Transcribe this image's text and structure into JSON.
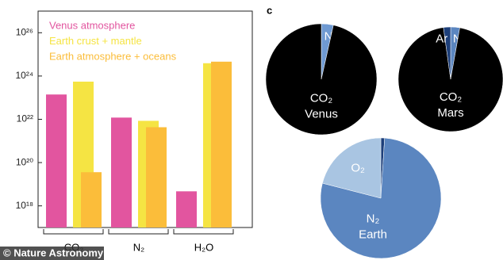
{
  "chart_data": [
    {
      "type": "bar",
      "yscale": "log",
      "categories": [
        "CO₂",
        "N₂",
        "H₂O"
      ],
      "series": [
        {
          "name": "Venus atmosphere",
          "color": "#e2559f",
          "values": [
            1.4e+23,
            1.2e+22,
            4.7e+18
          ]
        },
        {
          "name": "Earth crust + mantle",
          "color": "#f5e443",
          "values": [
            5.5e+23,
            8.5e+21,
            3.9e+24
          ]
        },
        {
          "name": "Earth atmosphere + oceans",
          "color": "#fbbd3a",
          "values": [
            3.6e+19,
            4.3e+21,
            4.6e+24
          ]
        }
      ],
      "ylim": [
        1e+17,
        1e+27
      ],
      "yticks": [
        {
          "value": 1e+18,
          "label": "10¹⁸"
        },
        {
          "value": 1e+20,
          "label": "10²⁰"
        },
        {
          "value": 1e+22,
          "label": "10²²"
        },
        {
          "value": 1e+24,
          "label": "10²⁴"
        },
        {
          "value": 1e+26,
          "label": "10²⁶"
        }
      ],
      "watermark": "© Nature Astronomy"
    },
    {
      "type": "pie",
      "panel_label": "c",
      "name": "Venus",
      "categories": [
        "N₂",
        "CO₂"
      ],
      "values": [
        3.5,
        96.5
      ],
      "colors": [
        "#6f9ad2",
        "#000000"
      ]
    },
    {
      "type": "pie",
      "name": "Mars",
      "categories": [
        "N₂",
        "CO₂",
        "Ar"
      ],
      "values": [
        2.8,
        95,
        2.2
      ],
      "colors": [
        "#5b86c0",
        "#000000",
        "#1d3f7a"
      ]
    },
    {
      "type": "pie",
      "name": "Earth",
      "categories": [
        "Ar",
        "N₂",
        "O₂"
      ],
      "values": [
        1,
        78,
        21
      ],
      "colors": [
        "#1d3f7a",
        "#5b86c0",
        "#a9c5e2"
      ]
    }
  ]
}
